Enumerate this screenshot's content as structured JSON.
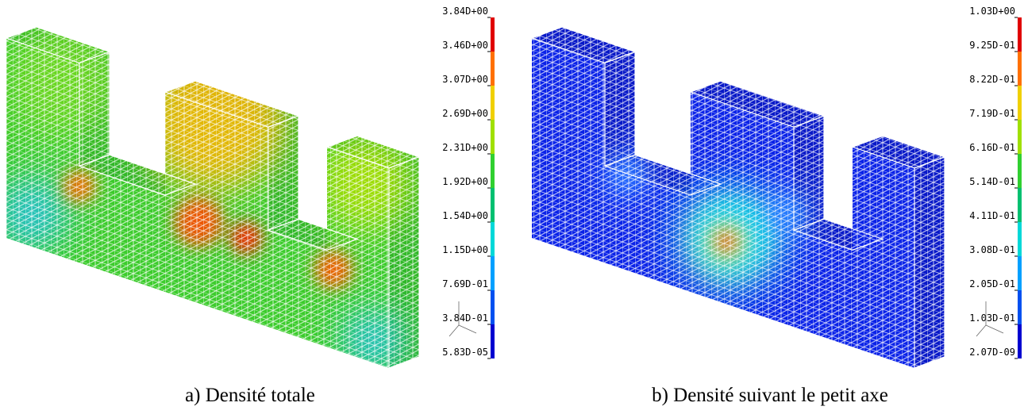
{
  "panels": [
    {
      "caption": "a) Densité totale",
      "colorbar_labels": [
        "3.84D+00",
        "3.46D+00",
        "3.07D+00",
        "2.69D+00",
        "2.31D+00",
        "1.92D+00",
        "1.54D+00",
        "1.15D+00",
        "7.69D-01",
        "3.84D-01",
        "5.83D-05"
      ]
    },
    {
      "caption": "b) Densité suivant le petit axe",
      "colorbar_labels": [
        "1.03D+00",
        "9.25D-01",
        "8.22D-01",
        "7.19D-01",
        "6.16D-01",
        "5.14D-01",
        "4.11D-01",
        "3.08D-01",
        "2.05D-01",
        "1.03D-01",
        "2.07D-09"
      ]
    }
  ]
}
